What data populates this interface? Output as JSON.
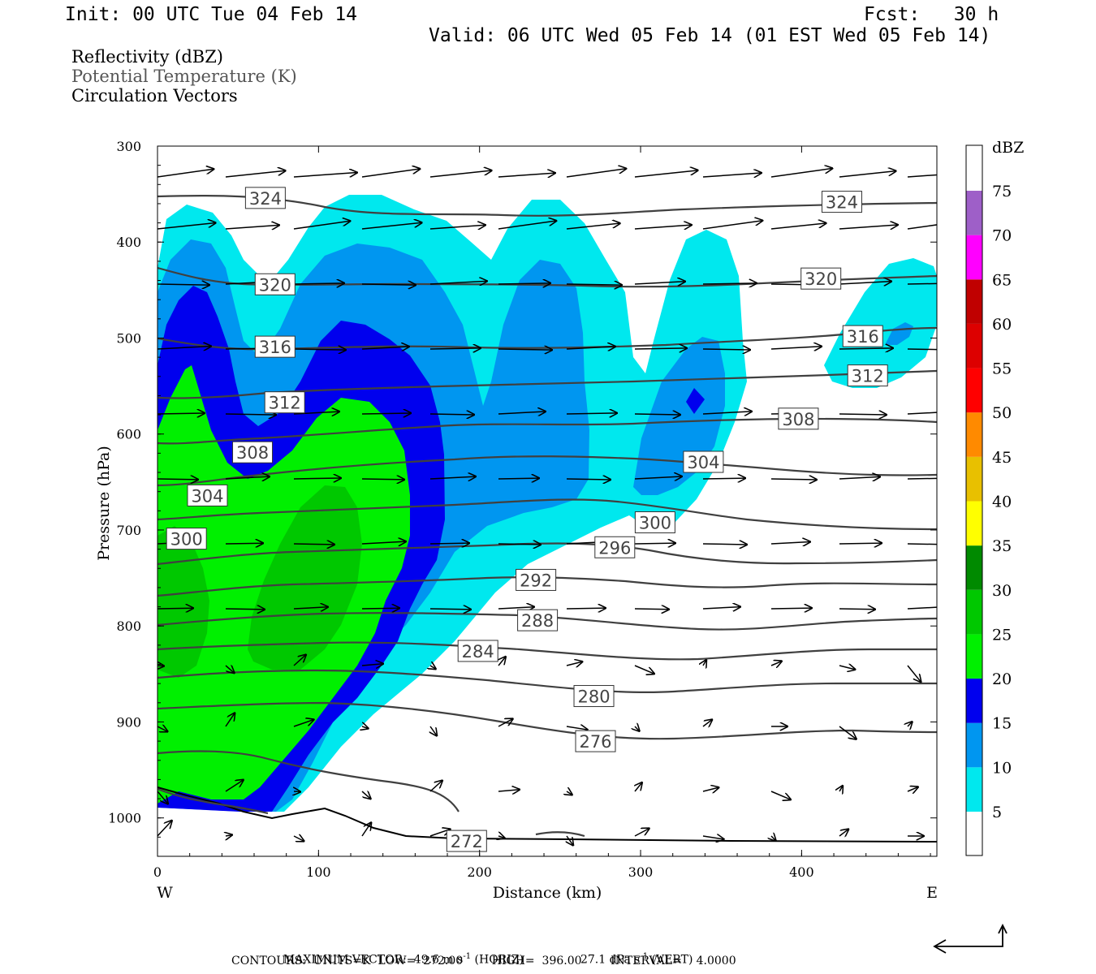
{
  "header": {
    "init": "Init: 00 UTC Tue 04 Feb 14",
    "fcst": "Fcst:   30 h",
    "valid": "Valid: 06 UTC Wed 05 Feb 14 (01 EST Wed 05 Feb 14)"
  },
  "titles": [
    "Reflectivity (dBZ)",
    "Potential Temperature (K)",
    "Circulation Vectors"
  ],
  "colors": {
    "z5": "#00e8ee",
    "z10": "#0096f0",
    "z15": "#0000ee",
    "z20": "#00f000",
    "z25": "#00c800",
    "z30": "#008a00",
    "z35": "#ffff00",
    "z40": "#e8c000",
    "z45": "#ff8a00",
    "z50": "#ff0000",
    "z55": "#dd0000",
    "z60": "#c00000",
    "z65": "#ff00ff",
    "z70": "#9e5fc8",
    "contour": "#404040"
  },
  "chart_data": {
    "type": "cross-section",
    "xlabel": "Distance (km)",
    "ylabel": "Pressure (hPa)",
    "x_range": [
      0,
      484
    ],
    "y_range": [
      300,
      1040
    ],
    "y_scale": "linear, inverted (pressure decreases upward)",
    "x_ticks": [
      0,
      100,
      200,
      300,
      400
    ],
    "y_ticks": [
      300,
      400,
      500,
      600,
      700,
      800,
      900,
      1000
    ],
    "x_end_labels": {
      "left": "W",
      "right": "E"
    },
    "colorbar": {
      "unit": "dBZ",
      "levels": [
        5,
        10,
        15,
        20,
        25,
        30,
        35,
        40,
        45,
        50,
        55,
        60,
        65,
        70,
        75
      ],
      "colors": [
        "#00e8ee",
        "#0096f0",
        "#0000ee",
        "#00f000",
        "#00c800",
        "#008a00",
        "#ffff00",
        "#e8c000",
        "#ff8a00",
        "#ff0000",
        "#dd0000",
        "#c00000",
        "#ff00ff",
        "#9e5fc8",
        "#ffffff"
      ]
    },
    "contours": {
      "variable": "Potential Temperature (K)",
      "low": 272,
      "high": 396,
      "interval": 4,
      "labels": [
        {
          "value": "324",
          "x": 67,
          "p": 354
        },
        {
          "value": "324",
          "x": 425,
          "p": 358
        },
        {
          "value": "320",
          "x": 73,
          "p": 444
        },
        {
          "value": "320",
          "x": 412,
          "p": 438
        },
        {
          "value": "316",
          "x": 73,
          "p": 509
        },
        {
          "value": "316",
          "x": 438,
          "p": 498
        },
        {
          "value": "312",
          "x": 79,
          "p": 567
        },
        {
          "value": "312",
          "x": 441,
          "p": 539
        },
        {
          "value": "308",
          "x": 59,
          "p": 619
        },
        {
          "value": "308",
          "x": 398,
          "p": 584
        },
        {
          "value": "304",
          "x": 31,
          "p": 664
        },
        {
          "value": "304",
          "x": 339,
          "p": 629
        },
        {
          "value": "300",
          "x": 18,
          "p": 709
        },
        {
          "value": "300",
          "x": 309,
          "p": 692
        },
        {
          "value": "296",
          "x": 284,
          "p": 718
        },
        {
          "value": "292",
          "x": 235,
          "p": 752
        },
        {
          "value": "288",
          "x": 236,
          "p": 794
        },
        {
          "value": "284",
          "x": 199,
          "p": 826
        },
        {
          "value": "280",
          "x": 271,
          "p": 873
        },
        {
          "value": "276",
          "x": 272,
          "p": 920
        },
        {
          "value": "272",
          "x": 192,
          "p": 1024
        }
      ]
    }
  },
  "footer": {
    "line1_a": "MAXIMUM VECTOR:  49.6 m s",
    "line1_b": "(HORIZ)",
    "line1_c": "27.1 dPa s",
    "line1_d": "(VERT)",
    "sup": "-1",
    "line2": "CONTOURS:  UNITS=K  LOW=  272.00        HIGH=  396.00        INTERVAL=    4.0000"
  }
}
